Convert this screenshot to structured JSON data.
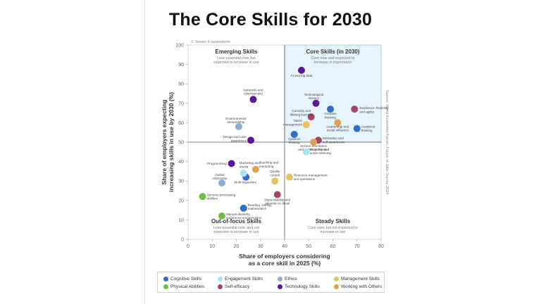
{
  "page": {
    "title": "The Core Skills for 2030"
  },
  "chart_data": {
    "type": "scatter",
    "copyright": "© Jeroen Kraaijenbrink",
    "xlabel": "Share of employers considering\nas a core skill in 2025 (%)",
    "ylabel": "Share of employers expecting\nincreasing skills in use by 2030 (%)",
    "xlim": [
      0,
      80
    ],
    "ylim": [
      0,
      100
    ],
    "xticks": [
      0,
      10,
      20,
      30,
      40,
      50,
      60,
      70,
      80
    ],
    "yticks": [
      0,
      10,
      20,
      30,
      40,
      50,
      60,
      70,
      80,
      90,
      100
    ],
    "xsplit": 40,
    "ysplit": 50,
    "source": "Source: World Economic Forum, Future of Jobs Survey 2024",
    "quadrants": [
      {
        "title": "Emerging Skills",
        "subtitle": "Less essential now, but\nexpected to increase in use",
        "position": "top-left"
      },
      {
        "title": "Core Skills (in 2030)",
        "subtitle": "Core now and expected to\nincrease in importance",
        "position": "top-right"
      },
      {
        "title": "Out-of-focus Skills",
        "subtitle": "Less essential now, and not\nexpected to increase in use",
        "position": "bottom-left"
      },
      {
        "title": "Steady Skills",
        "subtitle": "Core now, but not expected to\nincrease in use",
        "position": "bottom-right"
      }
    ],
    "categories": [
      {
        "name": "Cognitive Skills",
        "color": "#2e6fc7"
      },
      {
        "name": "Engagement Skills",
        "color": "#a8e4f3"
      },
      {
        "name": "Ethics",
        "color": "#86b0d9"
      },
      {
        "name": "Management Skills",
        "color": "#e6c35c"
      },
      {
        "name": "Physical Abilities",
        "color": "#6cc04a"
      },
      {
        "name": "Self-efficacy",
        "color": "#a2456a"
      },
      {
        "name": "Technology Skills",
        "color": "#5a1896"
      },
      {
        "name": "Working with Others",
        "color": "#e0a054"
      }
    ],
    "points": [
      {
        "label": "AI and big data",
        "category": "Technology Skills",
        "x": 47,
        "y": 87
      },
      {
        "label": "Technological\nliteracy",
        "category": "Technology Skills",
        "x": 53,
        "y": 70
      },
      {
        "label": "Networks and\ncybersecurity",
        "category": "Technology Skills",
        "x": 27,
        "y": 72
      },
      {
        "label": "Programming",
        "category": "Technology Skills",
        "x": 18,
        "y": 39
      },
      {
        "label": "Design and user\nexperience",
        "category": "Technology Skills",
        "x": 26,
        "y": 51
      },
      {
        "label": "Creative\nthinking",
        "category": "Cognitive Skills",
        "x": 59,
        "y": 67
      },
      {
        "label": "Analytical\nthinking",
        "category": "Cognitive Skills",
        "x": 70,
        "y": 57
      },
      {
        "label": "Systems\nthinking",
        "category": "Cognitive Skills",
        "x": 44,
        "y": 54
      },
      {
        "label": "Reading, writing,\nmathematics",
        "category": "Cognitive Skills",
        "x": 23,
        "y": 16
      },
      {
        "label": "Multi-lingualism",
        "category": "Cognitive Skills",
        "x": 24,
        "y": 32
      },
      {
        "label": "Curiosity and\nlifelong learning",
        "category": "Self-efficacy",
        "x": 51,
        "y": 63
      },
      {
        "label": "Resilience, flexibility\nand agility",
        "category": "Self-efficacy",
        "x": 69,
        "y": 67
      },
      {
        "label": "Motivation and\nself-awareness",
        "category": "Self-efficacy",
        "x": 54,
        "y": 51
      },
      {
        "label": "Dependability and\nattention to detail",
        "category": "Self-efficacy",
        "x": 37,
        "y": 23
      },
      {
        "label": "Talent\nmanagement",
        "category": "Management Skills",
        "x": 49,
        "y": 59
      },
      {
        "label": "Quality\ncontrol",
        "category": "Management Skills",
        "x": 36,
        "y": 30
      },
      {
        "label": "Resource management\nand operations",
        "category": "Management Skills",
        "x": 42,
        "y": 32
      },
      {
        "label": "Leadership and\nsocial influence",
        "category": "Working with Others",
        "x": 62,
        "y": 60
      },
      {
        "label": "Teaching and\nmentoring",
        "category": "Working with Others",
        "x": 28,
        "y": 36
      },
      {
        "label": "Service orientation\nand customer service",
        "category": "Working with Others",
        "x": 52,
        "y": 50
      },
      {
        "label": "Empathy and\nactive listening",
        "category": "Engagement Skills",
        "x": 49,
        "y": 45
      },
      {
        "label": "Marketing and\nmedia",
        "category": "Engagement Skills",
        "x": 23,
        "y": 34
      },
      {
        "label": "Environmental\nstewardship",
        "category": "Ethics",
        "x": 21,
        "y": 58
      },
      {
        "label": "Global\ncitizenship",
        "category": "Ethics",
        "x": 14,
        "y": 29
      },
      {
        "label": "Sensory-processing\nabilities",
        "category": "Physical Abilities",
        "x": 6,
        "y": 22
      },
      {
        "label": "Manual dexterity,\nendurance and precision",
        "category": "Physical Abilities",
        "x": 14,
        "y": 12
      }
    ]
  }
}
